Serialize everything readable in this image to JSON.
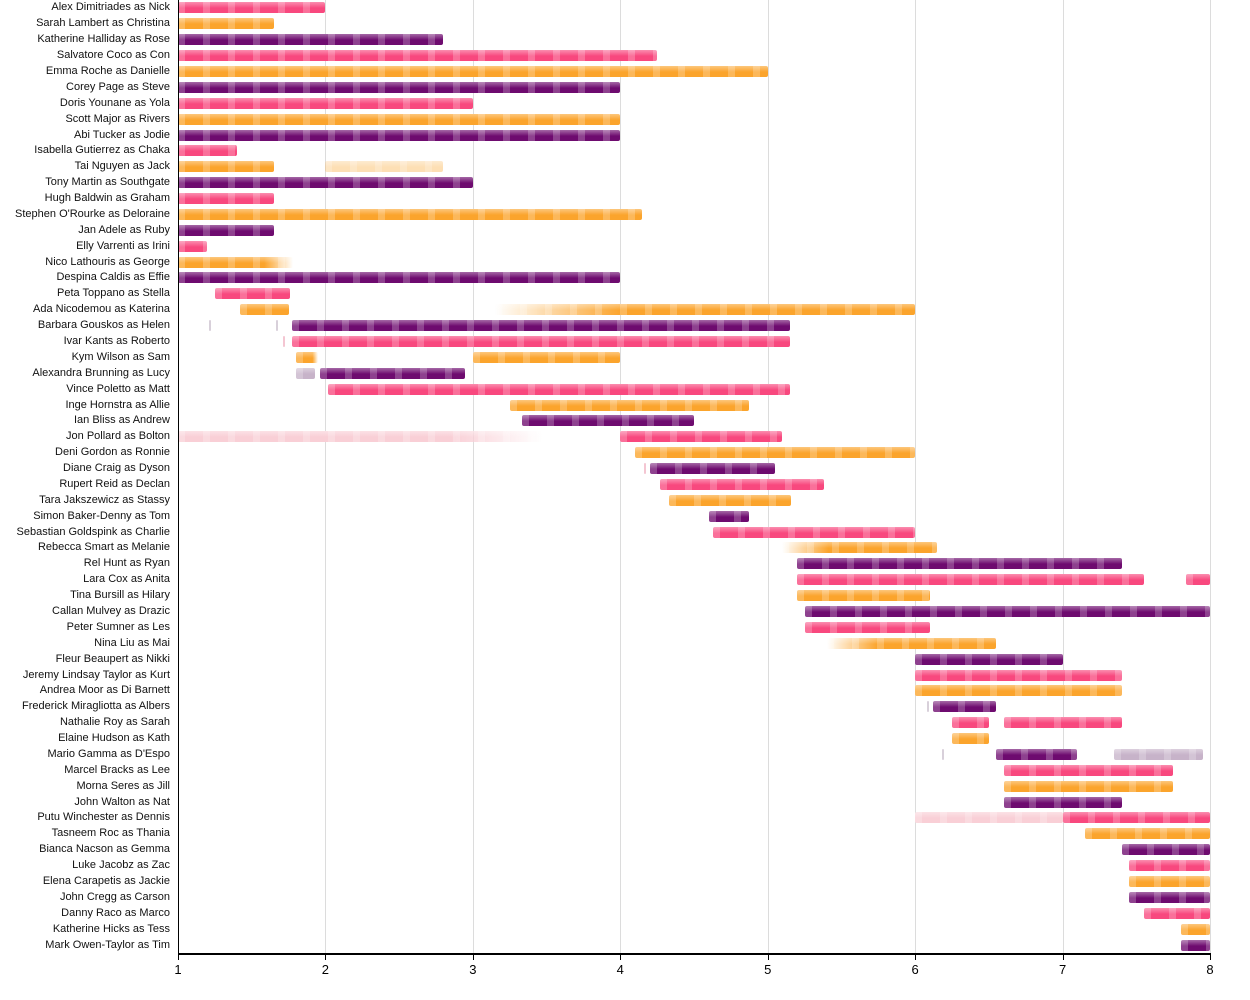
{
  "chart_data": {
    "type": "bar",
    "variant": "horizontal-range-timeline",
    "title": "",
    "xlabel": "",
    "ylabel": "",
    "xlim": [
      1,
      8
    ],
    "x_ticks": [
      1,
      2,
      3,
      4,
      5,
      6,
      7,
      8
    ],
    "x_tick_labels": [
      "1",
      "2",
      "3",
      "4",
      "5",
      "6",
      "7",
      "8"
    ],
    "grid": "vertical-light",
    "legend": "none",
    "colors": {
      "pink": "#F8487E",
      "orange": "#FBA42C",
      "purple": "#6E0B6F",
      "light_pink": "#F9CFD6",
      "lavender": "#C7B3C9",
      "marker_gray": "#D8D0DA",
      "marker_pink": "#F4C6D2",
      "axis": "#000000",
      "gridline": "#DCDCDC"
    },
    "rows": [
      {
        "label": "Alex Dimitriades as Nick",
        "segments": [
          {
            "start": 1,
            "end": 2.0,
            "color": "pink",
            "fade": "none"
          }
        ]
      },
      {
        "label": "Sarah Lambert as Christina",
        "segments": [
          {
            "start": 1,
            "end": 1.65,
            "color": "orange",
            "fade": "none"
          }
        ]
      },
      {
        "label": "Katherine Halliday as Rose",
        "segments": [
          {
            "start": 1,
            "end": 2.8,
            "color": "purple",
            "fade": "none"
          }
        ]
      },
      {
        "label": "Salvatore Coco as Con",
        "segments": [
          {
            "start": 1,
            "end": 4.25,
            "color": "pink",
            "fade": "none"
          }
        ]
      },
      {
        "label": "Emma Roche as Danielle",
        "segments": [
          {
            "start": 1,
            "end": 5.0,
            "color": "orange",
            "fade": "none"
          }
        ]
      },
      {
        "label": "Corey Page as Steve",
        "segments": [
          {
            "start": 1,
            "end": 4.0,
            "color": "purple",
            "fade": "none"
          }
        ]
      },
      {
        "label": "Doris Younane as Yola",
        "segments": [
          {
            "start": 1,
            "end": 3.0,
            "color": "pink",
            "fade": "none"
          }
        ]
      },
      {
        "label": "Scott Major as Rivers",
        "segments": [
          {
            "start": 1,
            "end": 4.0,
            "color": "orange",
            "fade": "none"
          }
        ]
      },
      {
        "label": "Abi Tucker as Jodie",
        "segments": [
          {
            "start": 1,
            "end": 4.0,
            "color": "purple",
            "fade": "none"
          }
        ]
      },
      {
        "label": "Isabella Gutierrez as Chaka",
        "segments": [
          {
            "start": 1,
            "end": 1.4,
            "color": "pink",
            "fade": "none"
          }
        ]
      },
      {
        "label": "Tai Nguyen as Jack",
        "segments": [
          {
            "start": 1,
            "end": 1.65,
            "color": "orange",
            "fade": "none"
          },
          {
            "start": 2.0,
            "end": 2.8,
            "color": "orange",
            "fade": "full"
          }
        ]
      },
      {
        "label": "Tony Martin as Southgate",
        "segments": [
          {
            "start": 1,
            "end": 3.0,
            "color": "purple",
            "fade": "none"
          }
        ]
      },
      {
        "label": "Hugh Baldwin as Graham",
        "segments": [
          {
            "start": 1,
            "end": 1.65,
            "color": "pink",
            "fade": "none"
          }
        ]
      },
      {
        "label": "Stephen O'Rourke as Deloraine",
        "segments": [
          {
            "start": 1,
            "end": 4.15,
            "color": "orange",
            "fade": "none"
          }
        ]
      },
      {
        "label": "Jan Adele as Ruby",
        "segments": [
          {
            "start": 1,
            "end": 1.65,
            "color": "purple",
            "fade": "none"
          }
        ]
      },
      {
        "label": "Elly Varrenti as Irini",
        "segments": [
          {
            "start": 1,
            "end": 1.2,
            "color": "pink",
            "fade": "none"
          }
        ]
      },
      {
        "label": "Nico Lathouris as George",
        "segments": [
          {
            "start": 1,
            "end": 1.78,
            "color": "orange",
            "fade": "right"
          }
        ]
      },
      {
        "label": "Despina Caldis as Effie",
        "segments": [
          {
            "start": 1,
            "end": 4.0,
            "color": "purple",
            "fade": "none"
          }
        ]
      },
      {
        "label": "Peta Toppano as Stella",
        "segments": [
          {
            "start": 1.25,
            "end": 1.76,
            "color": "pink",
            "fade": "none"
          }
        ]
      },
      {
        "label": "Ada Nicodemou as Katerina",
        "segments": [
          {
            "start": 1.42,
            "end": 1.75,
            "color": "orange",
            "fade": "none"
          },
          {
            "start": 3.15,
            "end": 6.0,
            "color": "orange",
            "fade": "left"
          }
        ]
      },
      {
        "label": "Barbara Gouskos as Helen",
        "segments": [
          {
            "marker": true,
            "at": 1.22,
            "color": "marker_gray"
          },
          {
            "marker": true,
            "at": 1.67,
            "color": "marker_gray"
          },
          {
            "start": 1.77,
            "end": 5.15,
            "color": "purple",
            "fade": "none"
          }
        ]
      },
      {
        "label": "Ivar Kants as Roberto",
        "segments": [
          {
            "marker": true,
            "at": 1.72,
            "color": "marker_pink"
          },
          {
            "start": 1.77,
            "end": 5.15,
            "color": "pink",
            "fade": "none"
          }
        ]
      },
      {
        "label": "Kym Wilson as Sam",
        "segments": [
          {
            "start": 1.8,
            "end": 1.95,
            "color": "orange",
            "fade": "right"
          },
          {
            "start": 3.0,
            "end": 4.0,
            "color": "orange",
            "fade": "none"
          }
        ]
      },
      {
        "label": "Alexandra Brunning as Lucy",
        "segments": [
          {
            "start": 1.8,
            "end": 1.93,
            "color": "lavender",
            "fade": "none"
          },
          {
            "start": 1.96,
            "end": 2.95,
            "color": "purple",
            "fade": "none"
          }
        ]
      },
      {
        "label": "Vince Poletto as Matt",
        "segments": [
          {
            "start": 2.02,
            "end": 5.15,
            "color": "pink",
            "fade": "none"
          }
        ]
      },
      {
        "label": "Inge Hornstra as Allie",
        "segments": [
          {
            "start": 3.25,
            "end": 4.87,
            "color": "orange",
            "fade": "none"
          }
        ]
      },
      {
        "label": "Ian Bliss as Andrew",
        "segments": [
          {
            "start": 3.33,
            "end": 4.5,
            "color": "purple",
            "fade": "none"
          }
        ]
      },
      {
        "label": "Jon Pollard as Bolton",
        "segments": [
          {
            "start": 1,
            "end": 3.47,
            "color": "light_pink",
            "fade": "right"
          },
          {
            "start": 4.0,
            "end": 5.1,
            "color": "pink",
            "fade": "none"
          }
        ]
      },
      {
        "label": "Deni Gordon as Ronnie",
        "segments": [
          {
            "start": 4.1,
            "end": 6.0,
            "color": "orange",
            "fade": "none"
          }
        ]
      },
      {
        "label": "Diane Craig as Dyson",
        "segments": [
          {
            "marker": true,
            "at": 4.17,
            "color": "marker_pink"
          },
          {
            "start": 4.2,
            "end": 5.05,
            "color": "purple",
            "fade": "none"
          }
        ]
      },
      {
        "label": "Rupert Reid as Declan",
        "segments": [
          {
            "start": 4.27,
            "end": 5.38,
            "color": "pink",
            "fade": "none"
          }
        ]
      },
      {
        "label": "Tara Jakszewicz as Stassy",
        "segments": [
          {
            "start": 4.33,
            "end": 5.16,
            "color": "orange",
            "fade": "none"
          }
        ]
      },
      {
        "label": "Simon Baker-Denny as Tom",
        "segments": [
          {
            "start": 4.6,
            "end": 4.87,
            "color": "purple",
            "fade": "none"
          }
        ]
      },
      {
        "label": "Sebastian Goldspink as Charlie",
        "segments": [
          {
            "start": 4.63,
            "end": 6.0,
            "color": "pink",
            "fade": "none"
          }
        ]
      },
      {
        "label": "Rebecca Smart as Melanie",
        "segments": [
          {
            "start": 5.1,
            "end": 6.15,
            "color": "orange",
            "fade": "left"
          }
        ]
      },
      {
        "label": "Rel Hunt as Ryan",
        "segments": [
          {
            "start": 5.2,
            "end": 7.4,
            "color": "purple",
            "fade": "none"
          }
        ]
      },
      {
        "label": "Lara Cox as Anita",
        "segments": [
          {
            "start": 5.2,
            "end": 7.55,
            "color": "pink",
            "fade": "none"
          },
          {
            "start": 7.84,
            "end": 8.0,
            "color": "pink",
            "fade": "none"
          }
        ]
      },
      {
        "label": "Tina Bursill as Hilary",
        "segments": [
          {
            "start": 5.2,
            "end": 6.1,
            "color": "orange",
            "fade": "none"
          }
        ]
      },
      {
        "label": "Callan Mulvey as Drazic",
        "segments": [
          {
            "start": 5.25,
            "end": 8.0,
            "color": "purple",
            "fade": "none"
          }
        ]
      },
      {
        "label": "Peter Sumner as Les",
        "segments": [
          {
            "start": 5.25,
            "end": 6.1,
            "color": "pink",
            "fade": "none"
          }
        ]
      },
      {
        "label": "Nina Liu as Mai",
        "segments": [
          {
            "start": 5.4,
            "end": 6.55,
            "color": "orange",
            "fade": "left"
          }
        ]
      },
      {
        "label": "Fleur Beaupert as Nikki",
        "segments": [
          {
            "start": 6.0,
            "end": 7.0,
            "color": "purple",
            "fade": "none"
          }
        ]
      },
      {
        "label": "Jeremy Lindsay Taylor as Kurt",
        "segments": [
          {
            "start": 6.0,
            "end": 7.4,
            "color": "pink",
            "fade": "none"
          }
        ]
      },
      {
        "label": "Andrea Moor as Di Barnett",
        "segments": [
          {
            "start": 6.0,
            "end": 7.4,
            "color": "orange",
            "fade": "none"
          }
        ]
      },
      {
        "label": "Frederick Miragliotta as Albers",
        "segments": [
          {
            "marker": true,
            "at": 6.09,
            "color": "marker_gray"
          },
          {
            "start": 6.12,
            "end": 6.55,
            "color": "purple",
            "fade": "none"
          }
        ]
      },
      {
        "label": "Nathalie Roy as Sarah",
        "segments": [
          {
            "start": 6.25,
            "end": 6.5,
            "color": "pink",
            "fade": "none"
          },
          {
            "start": 6.6,
            "end": 7.4,
            "color": "pink",
            "fade": "none"
          }
        ]
      },
      {
        "label": "Elaine Hudson as Kath",
        "segments": [
          {
            "start": 6.25,
            "end": 6.5,
            "color": "orange",
            "fade": "none"
          }
        ]
      },
      {
        "label": "Mario Gamma as D'Espo",
        "segments": [
          {
            "marker": true,
            "at": 6.19,
            "color": "marker_gray"
          },
          {
            "start": 6.55,
            "end": 7.1,
            "color": "purple",
            "fade": "none"
          },
          {
            "start": 7.35,
            "end": 7.95,
            "color": "lavender",
            "fade": "none"
          }
        ]
      },
      {
        "label": "Marcel Bracks as Lee",
        "segments": [
          {
            "start": 6.6,
            "end": 7.75,
            "color": "pink",
            "fade": "none"
          }
        ]
      },
      {
        "label": "Morna Seres as Jill",
        "segments": [
          {
            "start": 6.6,
            "end": 7.75,
            "color": "orange",
            "fade": "none"
          }
        ]
      },
      {
        "label": "John Walton as Nat",
        "segments": [
          {
            "start": 6.6,
            "end": 7.4,
            "color": "purple",
            "fade": "none"
          }
        ]
      },
      {
        "label": "Putu Winchester as Dennis",
        "segments": [
          {
            "start": 6.0,
            "end": 7.0,
            "color": "light_pink",
            "fade": "none"
          },
          {
            "start": 7.0,
            "end": 8.0,
            "color": "pink",
            "fade": "none"
          }
        ]
      },
      {
        "label": "Tasneem Roc as Thania",
        "segments": [
          {
            "start": 7.15,
            "end": 8.0,
            "color": "orange",
            "fade": "none"
          }
        ]
      },
      {
        "label": "Bianca Nacson as Gemma",
        "segments": [
          {
            "start": 7.4,
            "end": 8.0,
            "color": "purple",
            "fade": "none"
          }
        ]
      },
      {
        "label": "Luke Jacobz as Zac",
        "segments": [
          {
            "start": 7.45,
            "end": 8.0,
            "color": "pink",
            "fade": "none"
          }
        ]
      },
      {
        "label": "Elena Carapetis as Jackie",
        "segments": [
          {
            "start": 7.45,
            "end": 8.0,
            "color": "orange",
            "fade": "none"
          }
        ]
      },
      {
        "label": "John Cregg as Carson",
        "segments": [
          {
            "start": 7.45,
            "end": 8.0,
            "color": "purple",
            "fade": "none"
          }
        ]
      },
      {
        "label": "Danny Raco as Marco",
        "segments": [
          {
            "start": 7.55,
            "end": 8.0,
            "color": "pink",
            "fade": "none"
          }
        ]
      },
      {
        "label": "Katherine Hicks as Tess",
        "segments": [
          {
            "start": 7.8,
            "end": 8.0,
            "color": "orange",
            "fade": "none"
          }
        ]
      },
      {
        "label": "Mark Owen-Taylor as Tim",
        "segments": [
          {
            "start": 7.8,
            "end": 8.0,
            "color": "purple",
            "fade": "none"
          }
        ]
      }
    ]
  }
}
